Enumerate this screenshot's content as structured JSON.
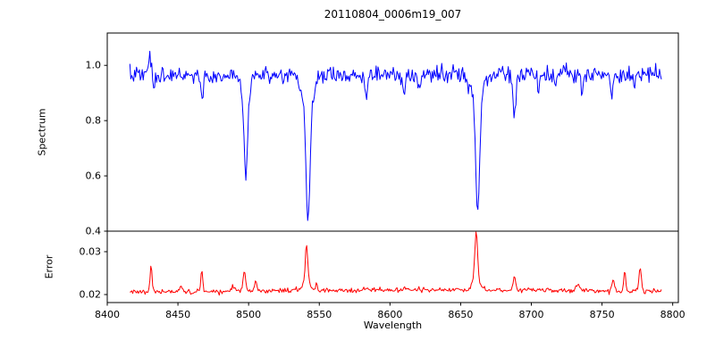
{
  "figure": {
    "title": "20110804_0006m19_007",
    "xlabel": "Wavelength",
    "ylabel_top": "Spectrum",
    "ylabel_bottom": "Error",
    "background": "#ffffff",
    "spine_color": "#000000",
    "text_color": "#000000"
  },
  "chart_data": {
    "type": "line",
    "title": "20110804_0006m19_007",
    "xlabel": "Wavelength",
    "xlim": [
      8400,
      8804
    ],
    "xticks": [
      8400,
      8450,
      8500,
      8550,
      8600,
      8650,
      8700,
      8750,
      8800
    ],
    "x_data_range": [
      8416,
      8792
    ],
    "n_points": 560,
    "noise_seed": 7,
    "grid": false,
    "legend": "none",
    "panels": [
      {
        "name": "spectrum",
        "ylabel": "Spectrum",
        "color": "#0000ff",
        "ylim": [
          0.4,
          1.117
        ],
        "yticks": [
          "0.4",
          "0.6",
          "0.8",
          "1.0"
        ],
        "continuum": 0.965,
        "noise_sigma": 0.015,
        "absorption_lines": [
          [
            8433,
            0.06,
            0.8
          ],
          [
            8467,
            0.08,
            0.9
          ],
          [
            8498,
            0.31,
            1.1
          ],
          [
            8498,
            0.07,
            2.6
          ],
          [
            8542,
            0.42,
            1.4
          ],
          [
            8542,
            0.11,
            4.0
          ],
          [
            8583,
            0.07,
            0.9
          ],
          [
            8610,
            0.08,
            0.9
          ],
          [
            8621,
            0.05,
            0.8
          ],
          [
            8662,
            0.4,
            1.3
          ],
          [
            8662,
            0.1,
            3.4
          ],
          [
            8688,
            0.13,
            1.0
          ],
          [
            8705,
            0.08,
            0.7
          ],
          [
            8717,
            0.06,
            0.8
          ],
          [
            8736,
            0.07,
            0.8
          ],
          [
            8757,
            0.07,
            0.8
          ],
          [
            8773,
            0.06,
            0.7
          ]
        ],
        "emission_spikes": [
          [
            8430,
            0.08,
            0.7
          ]
        ],
        "line_minima": {
          "8498": 0.59,
          "8542": 0.42,
          "8662": 0.47,
          "8688": 0.83
        }
      },
      {
        "name": "error",
        "ylabel": "Error",
        "color": "#ff0000",
        "ylim": [
          0.01813,
          0.03479
        ],
        "yticks": [
          "0.02",
          "0.03"
        ],
        "baseline": 0.0205,
        "broad_bump": [
          8640,
          0.0006,
          120
        ],
        "noise_sigma": 0.00028,
        "spikes": [
          [
            8431,
            0.0062,
            0.7
          ],
          [
            8452,
            0.0014,
            1.0
          ],
          [
            8467,
            0.0048,
            0.7
          ],
          [
            8490,
            0.001,
            1.5
          ],
          [
            8497,
            0.0046,
            0.9
          ],
          [
            8505,
            0.0026,
            0.7
          ],
          [
            8541,
            0.008,
            0.8
          ],
          [
            8541,
            0.0028,
            2.2
          ],
          [
            8548,
            0.002,
            0.6
          ],
          [
            8584,
            0.0007,
            0.8
          ],
          [
            8610,
            0.0007,
            0.8
          ],
          [
            8661,
            0.011,
            0.9
          ],
          [
            8661,
            0.003,
            2.5
          ],
          [
            8688,
            0.0033,
            0.7
          ],
          [
            8733,
            0.0017,
            1.2
          ],
          [
            8758,
            0.0028,
            0.9
          ],
          [
            8766,
            0.0047,
            0.7
          ],
          [
            8777,
            0.0055,
            0.8
          ]
        ],
        "spike_peaks": {
          "8431": 0.027,
          "8467": 0.026,
          "8541": 0.031,
          "8661": 0.0345,
          "8688": 0.024,
          "8777": 0.026
        }
      }
    ]
  }
}
